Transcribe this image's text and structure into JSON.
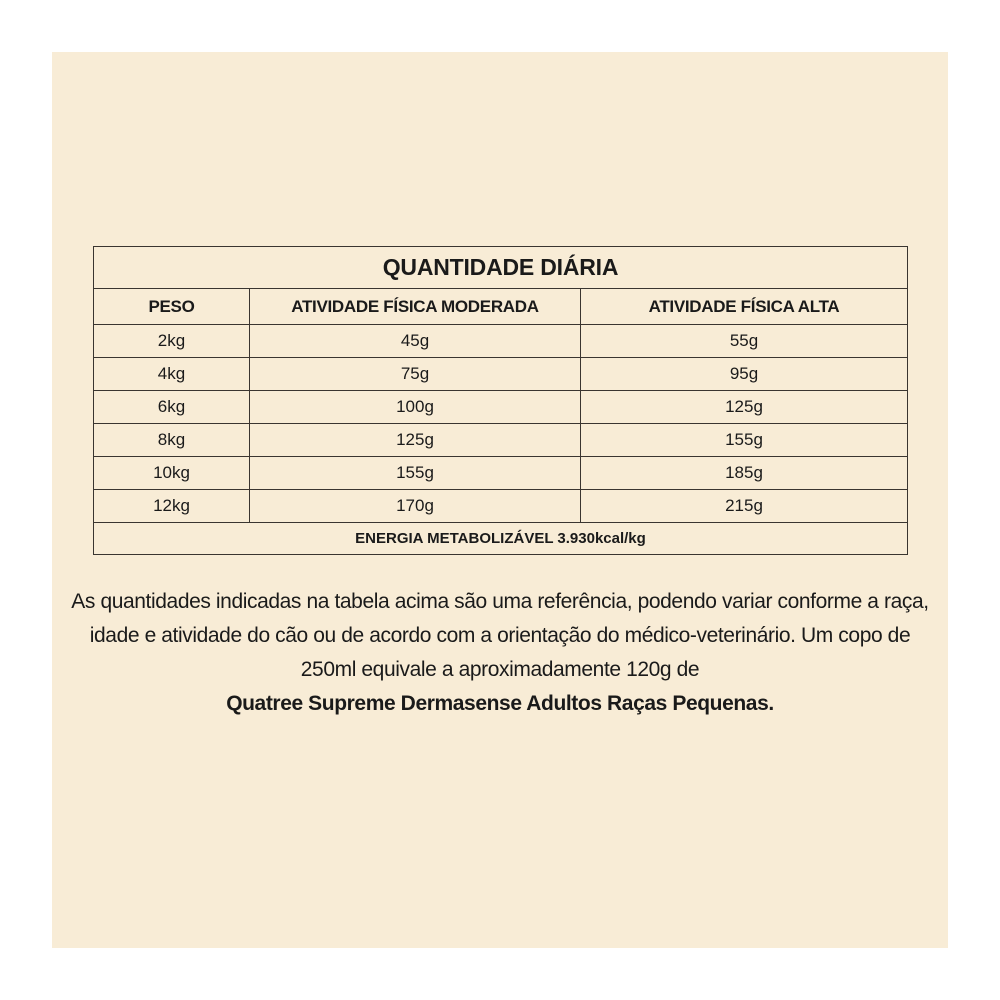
{
  "table": {
    "title": "QUANTIDADE DIÁRIA",
    "headers": [
      "PESO",
      "ATIVIDADE FÍSICA MODERADA",
      "ATIVIDADE FÍSICA ALTA"
    ],
    "rows": [
      [
        "2kg",
        "45g",
        "55g"
      ],
      [
        "4kg",
        "75g",
        "95g"
      ],
      [
        "6kg",
        "100g",
        "125g"
      ],
      [
        "8kg",
        "125g",
        "155g"
      ],
      [
        "10kg",
        "155g",
        "185g"
      ],
      [
        "12kg",
        "170g",
        "215g"
      ]
    ],
    "footer": "ENERGIA METABOLIZÁVEL 3.930kcal/kg"
  },
  "note": {
    "text": "As quantidades indicadas na tabela acima são uma referência, podendo variar conforme a raça, idade e atividade do cão ou de acordo com a orientação do médico-veterinário. Um copo de 250ml equivale a aproximadamente 120g de",
    "product": "Quatree Supreme Dermasense Adultos Raças Pequenas."
  },
  "colors": {
    "background": "#f8ecd6",
    "border": "#3a3530"
  }
}
